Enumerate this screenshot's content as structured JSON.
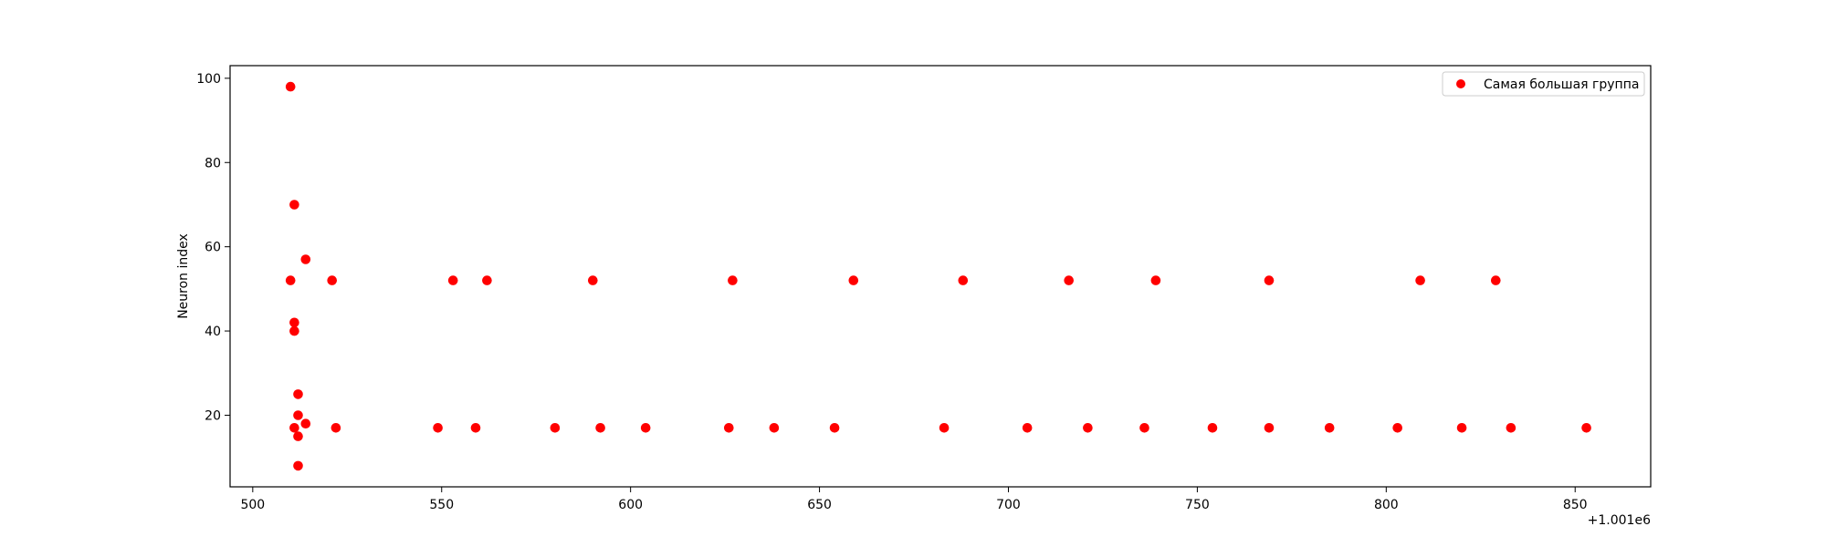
{
  "chart_data": {
    "type": "scatter",
    "title": "",
    "xlabel": "",
    "ylabel": "Neuron index",
    "x_offset_label": "+1.001e6",
    "xlim": [
      1001494,
      1001870
    ],
    "ylim": [
      3,
      103
    ],
    "x_ticks": [
      "500",
      "550",
      "600",
      "650",
      "700",
      "750",
      "800",
      "850"
    ],
    "y_ticks": [
      "20",
      "40",
      "60",
      "80",
      "100"
    ],
    "grid": false,
    "legend_position": "top-right",
    "series": [
      {
        "name": "Самая большая группа",
        "color": "#ff0000",
        "marker": "circle",
        "points": [
          [
            1001510,
            98
          ],
          [
            1001511,
            70
          ],
          [
            1001514,
            57
          ],
          [
            1001510,
            52
          ],
          [
            1001511,
            42
          ],
          [
            1001511,
            40
          ],
          [
            1001512,
            25
          ],
          [
            1001512,
            20
          ],
          [
            1001514,
            18
          ],
          [
            1001511,
            17
          ],
          [
            1001512,
            15
          ],
          [
            1001512,
            8
          ],
          [
            1001521,
            52
          ],
          [
            1001553,
            52
          ],
          [
            1001562,
            52
          ],
          [
            1001590,
            52
          ],
          [
            1001627,
            52
          ],
          [
            1001659,
            52
          ],
          [
            1001688,
            52
          ],
          [
            1001716,
            52
          ],
          [
            1001739,
            52
          ],
          [
            1001769,
            52
          ],
          [
            1001809,
            52
          ],
          [
            1001829,
            52
          ],
          [
            1001522,
            17
          ],
          [
            1001549,
            17
          ],
          [
            1001559,
            17
          ],
          [
            1001580,
            17
          ],
          [
            1001592,
            17
          ],
          [
            1001604,
            17
          ],
          [
            1001626,
            17
          ],
          [
            1001638,
            17
          ],
          [
            1001654,
            17
          ],
          [
            1001683,
            17
          ],
          [
            1001705,
            17
          ],
          [
            1001721,
            17
          ],
          [
            1001736,
            17
          ],
          [
            1001754,
            17
          ],
          [
            1001769,
            17
          ],
          [
            1001785,
            17
          ],
          [
            1001803,
            17
          ],
          [
            1001820,
            17
          ],
          [
            1001833,
            17
          ],
          [
            1001853,
            17
          ]
        ]
      }
    ]
  }
}
